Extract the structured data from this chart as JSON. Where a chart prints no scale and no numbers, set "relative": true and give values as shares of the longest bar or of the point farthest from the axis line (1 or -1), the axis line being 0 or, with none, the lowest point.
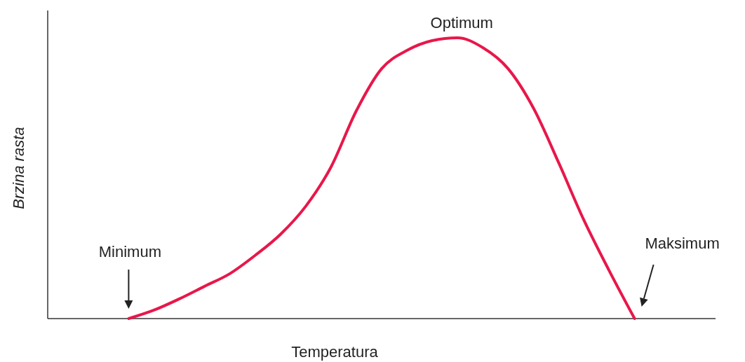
{
  "chart_data": {
    "type": "line",
    "relative": true,
    "xlabel": "Temperatura",
    "ylabel": "Brzina rasta",
    "categories": [
      null,
      null,
      null,
      null,
      null,
      null,
      null,
      null,
      null,
      null,
      null,
      null,
      null,
      null,
      null,
      null,
      null,
      null,
      null,
      null,
      null,
      null,
      null,
      null,
      null,
      null,
      null
    ],
    "series": [
      {
        "color": "#e8174a",
        "values": [
          null,
          null,
          null,
          0,
          0.03,
          0.07,
          0.115,
          0.16,
          0.225,
          0.3,
          0.4,
          0.54,
          0.74,
          0.89,
          0.955,
          0.99,
          1,
          0.965,
          0.89,
          0.75,
          0.555,
          0.35,
          0.17,
          0,
          null,
          null,
          null
        ]
      }
    ],
    "annotations": [
      "Minimum",
      "Optimum",
      "Maksimum"
    ],
    "line_style": "solid"
  }
}
